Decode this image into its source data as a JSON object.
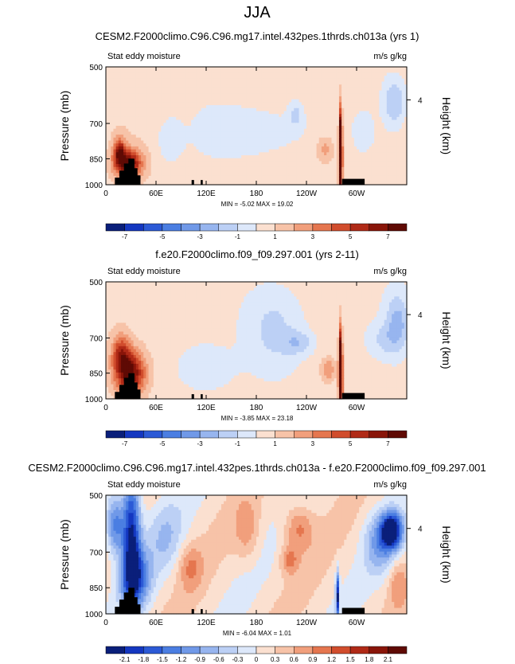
{
  "figure_title": "JJA",
  "chart_data": [
    {
      "type": "heatmap",
      "title": "CESM2.F2000climo.C96.C96.mg17.intel.432pes.1thrds.ch013a (yrs 1)",
      "left_label": "Stat eddy moisture",
      "right_label": "m/s g/kg",
      "ylabel": "Pressure (mb)",
      "ylabel_right": "Height (km)",
      "y_ticks": [
        "500",
        "700",
        "850",
        "1000"
      ],
      "y_ticks_right": [
        "4"
      ],
      "x_ticks": [
        "0",
        "60E",
        "120E",
        "180",
        "120W",
        "60W"
      ],
      "stats": "MIN = -5.02  MAX = 19.02",
      "colorbar_labels": [
        "-7",
        "-5",
        "-3",
        "-1",
        "1",
        "3",
        "5",
        "7"
      ],
      "colorbar_levels": 16
    },
    {
      "type": "heatmap",
      "title": "f.e20.F2000climo.f09_f09.297.001 (yrs 2-11)",
      "left_label": "Stat eddy moisture",
      "right_label": "m/s g/kg",
      "ylabel": "Pressure (mb)",
      "ylabel_right": "Height (km)",
      "y_ticks": [
        "500",
        "700",
        "850",
        "1000"
      ],
      "y_ticks_right": [
        "4"
      ],
      "x_ticks": [
        "0",
        "60E",
        "120E",
        "180",
        "120W",
        "60W"
      ],
      "stats": "MIN = -3.85  MAX = 23.18",
      "colorbar_labels": [
        "-7",
        "-5",
        "-3",
        "-1",
        "1",
        "3",
        "5",
        "7"
      ],
      "colorbar_levels": 16
    },
    {
      "type": "heatmap",
      "title": "CESM2.F2000climo.C96.C96.mg17.intel.432pes.1thrds.ch013a - f.e20.F2000climo.f09_f09.297.001",
      "left_label": "Stat eddy moisture",
      "right_label": "m/s g/kg",
      "ylabel": "Pressure (mb)",
      "ylabel_right": "Height (km)",
      "y_ticks": [
        "500",
        "700",
        "850",
        "1000"
      ],
      "y_ticks_right": [
        "4"
      ],
      "x_ticks": [
        "0",
        "60E",
        "120E",
        "180",
        "120W",
        "60W"
      ],
      "stats": "MIN = -6.04  MAX = 1.01",
      "colorbar_labels": [
        "-2.1",
        "-1.8",
        "-1.5",
        "-1.2",
        "-0.9",
        "-0.6",
        "-0.3",
        "0",
        "0.3",
        "0.6",
        "0.9",
        "1.2",
        "1.5",
        "1.8",
        "2.1"
      ],
      "colorbar_levels": 16
    }
  ],
  "colors": {
    "palette": [
      "#0a1f7a",
      "#1437c0",
      "#2c5ad6",
      "#4b7ee2",
      "#7099e8",
      "#97b5ef",
      "#bcd0f5",
      "#dde8fa",
      "#fbe0d0",
      "#f7c3a8",
      "#f19f7c",
      "#e5764f",
      "#d14d2d",
      "#b02a17",
      "#891509",
      "#5f0a04"
    ],
    "land": "#000000"
  }
}
